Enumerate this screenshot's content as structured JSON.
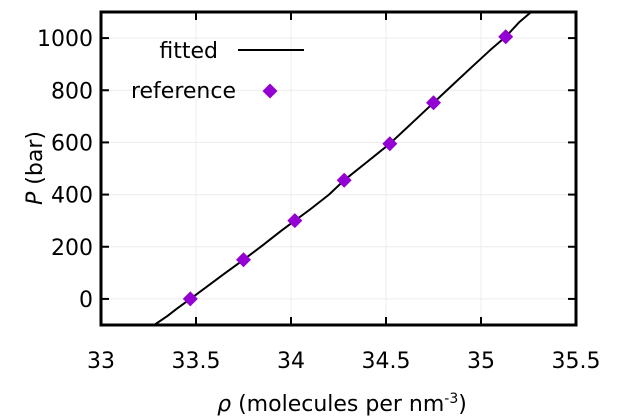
{
  "chart_data": {
    "type": "scatter",
    "xlabel_symbol": "ρ",
    "xlabel_text": " (molecules per nm",
    "xlabel_sup": "-3",
    "xlabel_close": ")",
    "ylabel_symbol": "P",
    "ylabel_text": " (bar)",
    "xlim": [
      33,
      35.5
    ],
    "ylim": [
      -100,
      1100
    ],
    "x_ticks": [
      33,
      33.5,
      34,
      34.5,
      35,
      35.5
    ],
    "x_tick_labels": [
      "33",
      "33.5",
      "34",
      "34.5",
      "35",
      "35.5"
    ],
    "y_ticks": [
      0,
      200,
      400,
      600,
      800,
      1000
    ],
    "y_tick_labels": [
      "0",
      "200",
      "400",
      "600",
      "800",
      "1000"
    ],
    "grid": true,
    "legend_position": "top-left",
    "series": [
      {
        "name": "fitted",
        "kind": "line",
        "color": "#000000",
        "x": [
          33.28,
          33.35,
          33.4,
          33.47,
          33.55,
          33.65,
          33.75,
          33.85,
          33.95,
          34.02,
          34.1,
          34.2,
          34.28,
          34.4,
          34.52,
          34.63,
          34.75,
          34.85,
          34.95,
          35.05,
          35.13,
          35.2,
          35.28
        ],
        "y": [
          -100,
          -65,
          -37,
          0,
          43,
          97,
          150,
          205,
          262,
          300,
          343,
          400,
          455,
          525,
          595,
          670,
          752,
          820,
          888,
          955,
          1005,
          1060,
          1110
        ]
      },
      {
        "name": "reference",
        "kind": "points",
        "marker": "diamond",
        "color": "#9400d3",
        "x": [
          33.47,
          33.75,
          34.02,
          34.28,
          34.52,
          34.75,
          35.13
        ],
        "y": [
          0,
          150,
          300,
          455,
          595,
          752,
          1005
        ]
      }
    ]
  }
}
